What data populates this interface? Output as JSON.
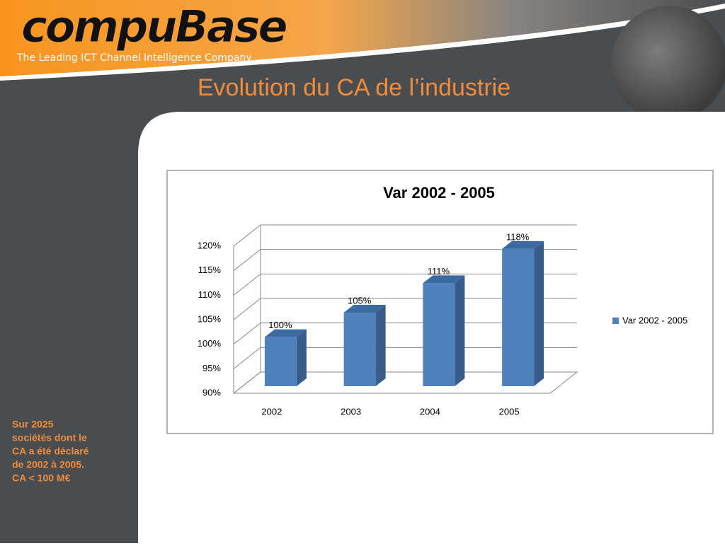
{
  "header": {
    "logo": "compuBase",
    "tagline": "The Leading ICT Channel Intelligence Company"
  },
  "slide_title": "Evolution du CA de l’industrie",
  "note": [
    "Sur 2025",
    "sociétés dont le",
    "CA a été déclaré",
    "de 2002 à 2005.",
    "CA < 100 M€"
  ],
  "chart_data": {
    "type": "bar3d",
    "title": "Var 2002 - 2005",
    "categories": [
      "2002",
      "2003",
      "2004",
      "2005"
    ],
    "series": [
      {
        "name": "Var 2002 - 2005",
        "color": "#4f81bd",
        "values": [
          100,
          105,
          111,
          118
        ],
        "value_labels": [
          "100%",
          "105%",
          "111%",
          "118%"
        ]
      }
    ],
    "ylim": [
      90,
      120
    ],
    "yticks": [
      {
        "value": 90,
        "label": "90%"
      },
      {
        "value": 95,
        "label": "95%"
      },
      {
        "value": 100,
        "label": "100%"
      },
      {
        "value": 105,
        "label": "105%"
      },
      {
        "value": 110,
        "label": "110%"
      },
      {
        "value": 115,
        "label": "115%"
      },
      {
        "value": 120,
        "label": "120%"
      }
    ],
    "grid": true,
    "legend": "right"
  }
}
